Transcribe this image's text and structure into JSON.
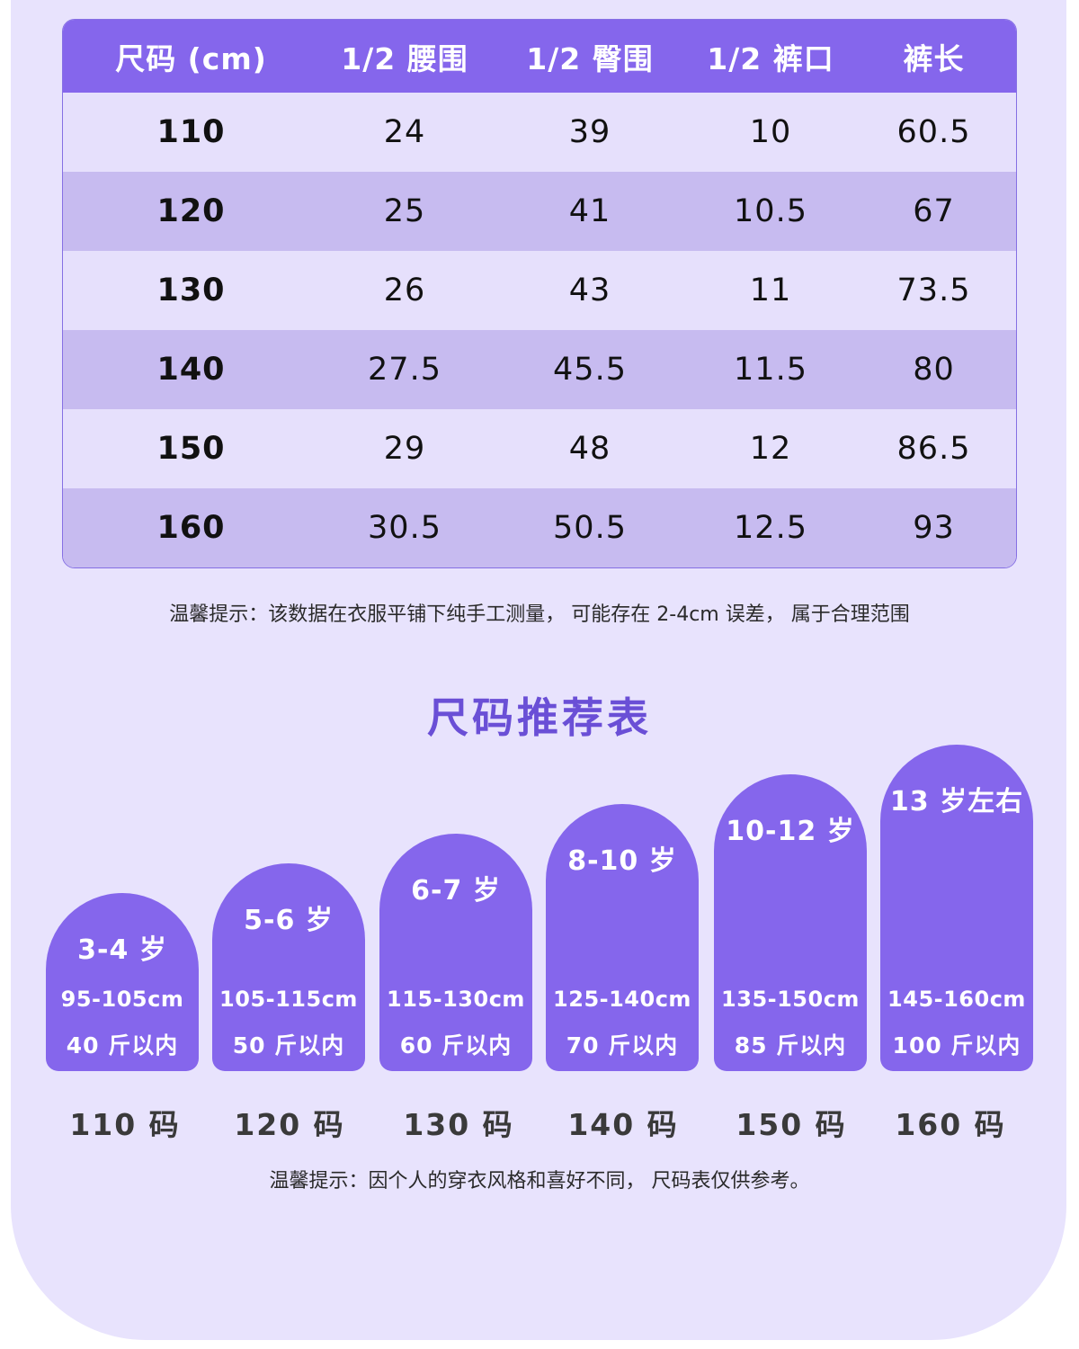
{
  "size_table": {
    "headers": [
      "尺码 (cm)",
      "1/2 腰围",
      "1/2 臀围",
      "1/2 裤口",
      "裤长"
    ],
    "rows": [
      [
        "110",
        "24",
        "39",
        "10",
        "60.5"
      ],
      [
        "120",
        "25",
        "41",
        "10.5",
        "67"
      ],
      [
        "130",
        "26",
        "43",
        "11",
        "73.5"
      ],
      [
        "140",
        "27.5",
        "45.5",
        "11.5",
        "80"
      ],
      [
        "150",
        "29",
        "48",
        "12",
        "86.5"
      ],
      [
        "160",
        "30.5",
        "50.5",
        "12.5",
        "93"
      ]
    ]
  },
  "measure_note": "温馨提示：该数据在衣服平铺下纯手工测量，  可能存在 2-4cm 误差，  属于合理范围",
  "recommend": {
    "title": "尺码推荐表",
    "cards": [
      {
        "age": "3-4 岁",
        "height": "95-105cm",
        "weight": "40 斤以内",
        "size": "110 码"
      },
      {
        "age": "5-6 岁",
        "height": "105-115cm",
        "weight": "50 斤以内",
        "size": "120 码"
      },
      {
        "age": "6-7 岁",
        "height": "115-130cm",
        "weight": "60 斤以内",
        "size": "130 码"
      },
      {
        "age": "8-10 岁",
        "height": "125-140cm",
        "weight": "70 斤以内",
        "size": "140 码"
      },
      {
        "age": "10-12 岁",
        "height": "135-150cm",
        "weight": "85 斤以内",
        "size": "150 码"
      },
      {
        "age": "13 岁左右",
        "height": "145-160cm",
        "weight": "100 斤以内",
        "size": "160 码"
      }
    ],
    "note": "温馨提示：因个人的穿衣风格和喜好不同，  尺码表仅供参考。"
  },
  "colors": {
    "accent": "#8566ec",
    "background": "#e8e3fd",
    "row_light": "#e6e0fc",
    "row_dark": "#c7bbf0",
    "title": "#6a4fd6"
  }
}
